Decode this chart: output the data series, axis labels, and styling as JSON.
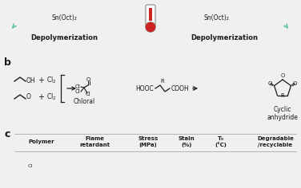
{
  "bg_color": "#f0f0f0",
  "teal_color": "#5bbfaa",
  "black": "#1a1a1a",
  "gray": "#888888",
  "red": "#cc2222",
  "sn_oct": "Sn(Oct)₂",
  "depolymerization": "Depolymerization",
  "chloral": "Chloral",
  "cyclic_anhydride": "Cyclic\nanhydride",
  "col_headers": [
    "Polymer",
    "Flame\nretardant",
    "Stress\n(MPa)",
    "Stain\n(%)",
    "T₉\n(°C)",
    "Degradable\n/recyclable"
  ]
}
